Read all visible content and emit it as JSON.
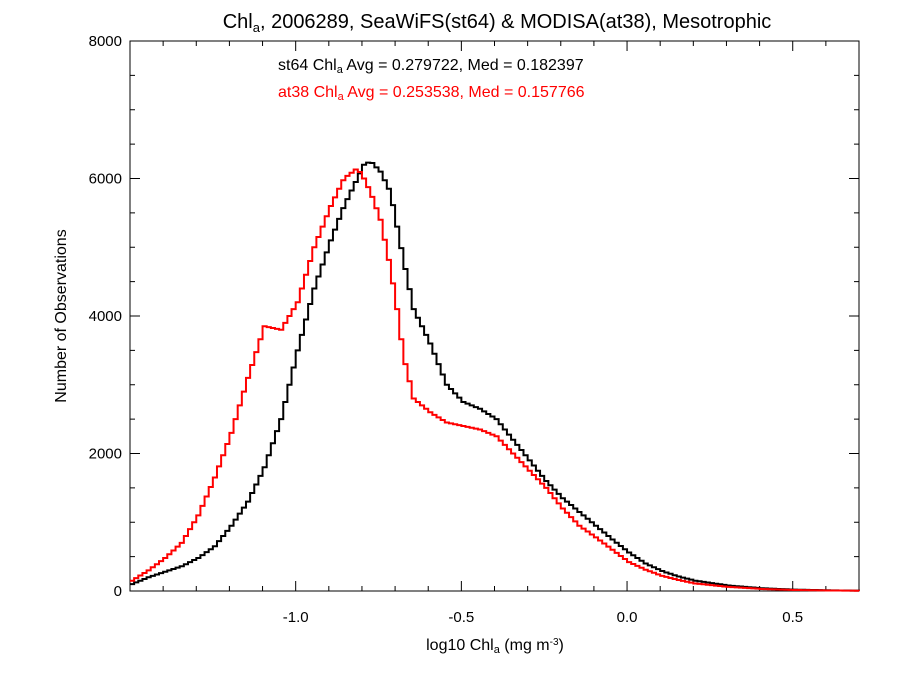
{
  "chart_data": {
    "type": "line",
    "title": {
      "main": "Chl",
      "sub": "a",
      "rest": ", 2006289, SeaWiFS(st64) & MODISA(at38), Mesotrophic"
    },
    "xlabel": {
      "main": "log10 Chl",
      "sub": "a",
      "mid": " (mg m",
      "sup": "-3",
      "end": ")"
    },
    "ylabel": "Number of Observations",
    "xlim": [
      -1.5,
      0.7
    ],
    "ylim": [
      0,
      8000
    ],
    "x_ticks": [
      -1.0,
      -0.5,
      0.0,
      0.5
    ],
    "x_tick_labels": [
      "-1.0",
      "-0.5",
      "0.0",
      "0.5"
    ],
    "y_ticks": [
      0,
      2000,
      4000,
      6000,
      8000
    ],
    "y_tick_labels": [
      "0",
      "2000",
      "4000",
      "6000",
      "8000"
    ],
    "grid": false,
    "series": [
      {
        "name": "st64",
        "color": "#000000",
        "annotation": {
          "pre": "st64 Chl",
          "sub": "a",
          "post": " Avg = 0.279722, Med = 0.182397"
        },
        "x": [
          -1.5,
          -1.45,
          -1.4,
          -1.35,
          -1.3,
          -1.25,
          -1.2,
          -1.15,
          -1.1,
          -1.05,
          -1.0,
          -0.95,
          -0.9,
          -0.86,
          -0.82,
          -0.8,
          -0.78,
          -0.75,
          -0.72,
          -0.7,
          -0.68,
          -0.65,
          -0.6,
          -0.55,
          -0.5,
          -0.45,
          -0.4,
          -0.35,
          -0.3,
          -0.25,
          -0.2,
          -0.15,
          -0.1,
          -0.05,
          0.0,
          0.05,
          0.1,
          0.15,
          0.2,
          0.3,
          0.4,
          0.5,
          0.6,
          0.7
        ],
        "y": [
          100,
          200,
          280,
          360,
          480,
          650,
          950,
          1300,
          1800,
          2500,
          3500,
          4400,
          5100,
          5600,
          6000,
          6200,
          6250,
          6100,
          5800,
          5300,
          4800,
          4100,
          3600,
          3000,
          2750,
          2650,
          2500,
          2200,
          1900,
          1600,
          1350,
          1150,
          950,
          750,
          560,
          400,
          290,
          210,
          150,
          80,
          40,
          20,
          10,
          5
        ]
      },
      {
        "name": "at38",
        "color": "#ff0000",
        "annotation": {
          "pre": "at38 Chl",
          "sub": "a",
          "post": " Avg = 0.253538, Med = 0.157766"
        },
        "x": [
          -1.5,
          -1.45,
          -1.4,
          -1.35,
          -1.3,
          -1.25,
          -1.2,
          -1.15,
          -1.1,
          -1.05,
          -1.0,
          -0.95,
          -0.9,
          -0.86,
          -0.82,
          -0.8,
          -0.78,
          -0.75,
          -0.72,
          -0.7,
          -0.68,
          -0.65,
          -0.6,
          -0.55,
          -0.5,
          -0.45,
          -0.4,
          -0.35,
          -0.3,
          -0.25,
          -0.2,
          -0.15,
          -0.1,
          -0.05,
          0.0,
          0.05,
          0.1,
          0.15,
          0.2,
          0.3,
          0.4,
          0.5,
          0.6,
          0.7
        ],
        "y": [
          150,
          300,
          480,
          700,
          1100,
          1650,
          2300,
          3100,
          3850,
          3800,
          4200,
          5000,
          5600,
          6000,
          6150,
          6000,
          5800,
          5400,
          4700,
          4100,
          3400,
          2800,
          2600,
          2450,
          2400,
          2350,
          2250,
          2000,
          1750,
          1500,
          1200,
          950,
          780,
          600,
          420,
          310,
          220,
          160,
          110,
          60,
          30,
          15,
          8,
          4
        ]
      }
    ]
  }
}
